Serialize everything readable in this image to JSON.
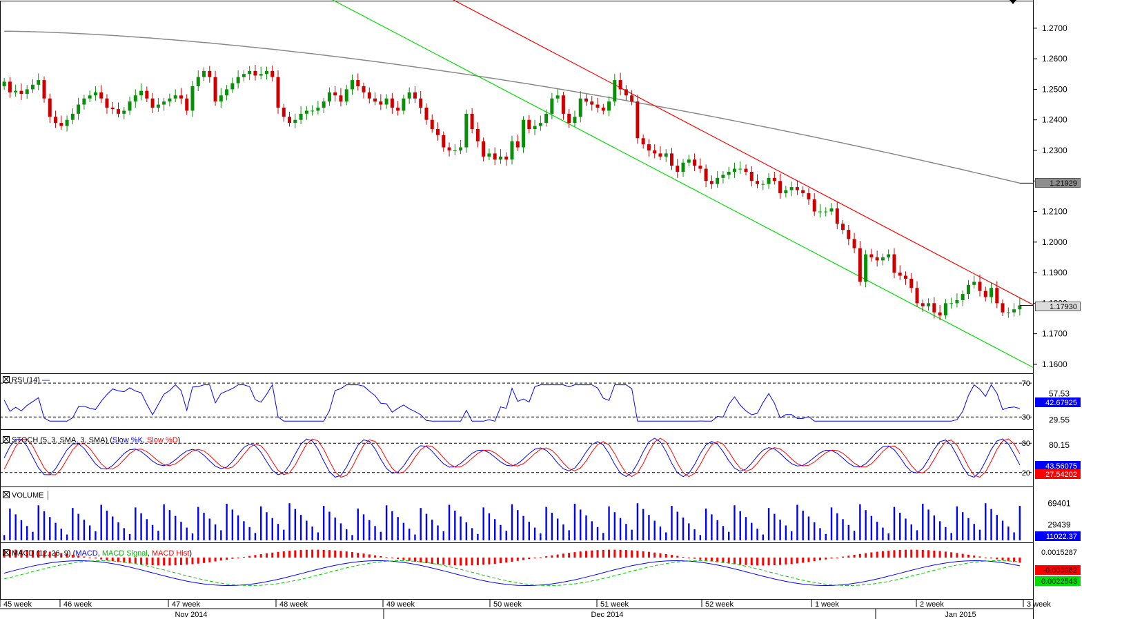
{
  "chart_data": {
    "type": "candlestick",
    "instrument_panels": [
      {
        "name": "price",
        "y_ticks": [
          "1.2700",
          "1.2600",
          "1.2500",
          "1.2400",
          "1.2300",
          "1.2200",
          "1.2100",
          "1.2000",
          "1.1900",
          "1.1800",
          "1.1700",
          "1.1600"
        ],
        "ylim": [
          1.1575,
          1.279
        ],
        "moving_average_last": "1.21929",
        "last_price": "1.17930",
        "close_series": [
          1.2525,
          1.249,
          1.2495,
          1.2485,
          1.25,
          1.2515,
          1.253,
          1.247,
          1.241,
          1.239,
          1.238,
          1.24,
          1.242,
          1.245,
          1.247,
          1.248,
          1.249,
          1.247,
          1.244,
          1.2435,
          1.242,
          1.243,
          1.246,
          1.248,
          1.2495,
          1.247,
          1.244,
          1.245,
          1.246,
          1.247,
          1.248,
          1.247,
          1.243,
          1.251,
          1.254,
          1.256,
          1.254,
          1.246,
          1.248,
          1.25,
          1.252,
          1.254,
          1.255,
          1.256,
          1.2545,
          1.255,
          1.256,
          1.254,
          1.244,
          1.241,
          1.239,
          1.24,
          1.242,
          1.243,
          1.243,
          1.244,
          1.246,
          1.249,
          1.248,
          1.246,
          1.25,
          1.253,
          1.251,
          1.249,
          1.247,
          1.246,
          1.245,
          1.247,
          1.244,
          1.243,
          1.247,
          1.249,
          1.247,
          1.244,
          1.24,
          1.237,
          1.235,
          1.231,
          1.23,
          1.23,
          1.231,
          1.242,
          1.237,
          1.233,
          1.228,
          1.229,
          1.227,
          1.228,
          1.227,
          1.233,
          1.231,
          1.24,
          1.237,
          1.238,
          1.239,
          1.242,
          1.247,
          1.248,
          1.242,
          1.239,
          1.241,
          1.247,
          1.246,
          1.245,
          1.244,
          1.243,
          1.246,
          1.253,
          1.25,
          1.248,
          1.246,
          1.234,
          1.232,
          1.23,
          1.229,
          1.228,
          1.229,
          1.225,
          1.223,
          1.226,
          1.227,
          1.225,
          1.224,
          1.22,
          1.219,
          1.221,
          1.222,
          1.223,
          1.224,
          1.224,
          1.223,
          1.22,
          1.219,
          1.219,
          1.221,
          1.22,
          1.216,
          1.217,
          1.218,
          1.217,
          1.216,
          1.214,
          1.21,
          1.21,
          1.21,
          1.211,
          1.206,
          1.204,
          1.201,
          1.198,
          1.187,
          1.196,
          1.195,
          1.194,
          1.195,
          1.196,
          1.19,
          1.189,
          1.188,
          1.185,
          1.18,
          1.179,
          1.18,
          1.177,
          1.176,
          1.18,
          1.18,
          1.181,
          1.183,
          1.186,
          1.187,
          1.184,
          1.182,
          1.185,
          1.18,
          1.177,
          1.177,
          1.178,
          1.1793
        ]
      },
      {
        "name": "RSI",
        "title": "RSI (14)",
        "levels": [
          "57.53",
          "29.55"
        ],
        "ref_lines": [
          "70",
          "30"
        ],
        "last_value": "42.67925"
      },
      {
        "name": "STOCH",
        "title": "STOCH (5, 3, SMA, 3, SMA)",
        "series": [
          "Slow %K",
          "Slow %D"
        ],
        "levels": [
          "80.15",
          "80",
          "20"
        ],
        "last_k": "43.56075",
        "last_d": "27.54202"
      },
      {
        "name": "VOLUME",
        "title": "VOLUME",
        "levels": [
          "69401",
          "29439"
        ],
        "last_value": "11022.37"
      },
      {
        "name": "MACD",
        "title": "MACD (12, 26, 9)",
        "series": [
          "MACD",
          "MACD Signal",
          "MACD Hist"
        ],
        "levels": [
          "0.0015287"
        ],
        "last_hist": "-0.000082",
        "last_signal": "0.0022543"
      }
    ],
    "x_week_labels": [
      "45 week",
      "46 week",
      "47 week",
      "48 week",
      "49 week",
      "50 week",
      "51 week",
      "52 week",
      "1 week",
      "2 week",
      "3 week"
    ],
    "x_month_labels": [
      "Nov 2014",
      "Dec 2014",
      "Jan 2015"
    ]
  },
  "labels": {
    "rsi_title": "RSI (14)",
    "stoch_title_prefix": "STOCH (5, 3, SMA, 3, SMA) (",
    "stoch_k": "Slow %K",
    "stoch_sep": ", ",
    "stoch_d": "Slow %D",
    "stoch_close": ")",
    "volume_title": "VOLUME",
    "macd_title_prefix": "MACD (12, 26, 9) (",
    "macd_line": "MACD",
    "macd_signal": "MACD Signal",
    "macd_hist": "MACD Hist",
    "macd_close": ")"
  },
  "colors": {
    "up": "#0a8f0a",
    "down": "#cc0000",
    "ma": "#8a8a8a",
    "upper_channel": "#ff0000",
    "lower_channel": "#00dd00",
    "rsi": "#0000ff",
    "stoch_k": "#0000ff",
    "stoch_d": "#ff0000",
    "volume": "#0000ff",
    "macd": "#0000ff",
    "signal": "#00cc00",
    "hist": "#ff0000"
  }
}
